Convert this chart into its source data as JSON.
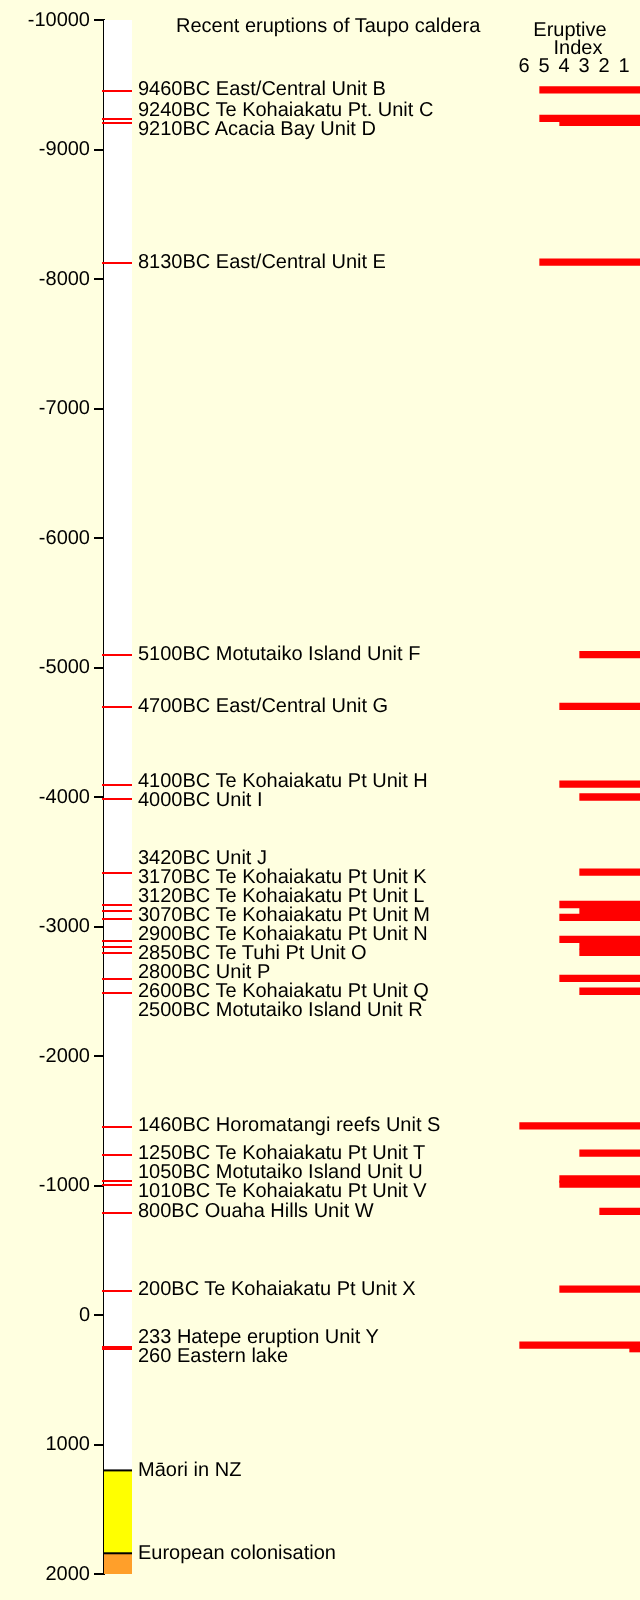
{
  "chart_data": {
    "type": "bar",
    "orientation": "horizontal",
    "title": "Recent eruptions of Taupo caldera",
    "xlabel": "Eruptive Index",
    "x": [
      -9460,
      -9240,
      -9210,
      -8130,
      -5100,
      -4700,
      -4100,
      -4000,
      -3420,
      -3170,
      -3120,
      -3070,
      -2900,
      -2850,
      -2800,
      -2600,
      -2500,
      -1460,
      -1250,
      -1050,
      -1010,
      -800,
      -200,
      233,
      260
    ],
    "values": [
      5,
      5,
      4,
      5,
      3,
      4,
      4,
      3,
      3,
      4,
      3,
      4,
      4,
      3,
      3,
      4,
      3,
      6,
      3,
      4,
      4,
      2,
      4,
      6,
      0.5
    ],
    "color": "#ff0000",
    "xlim": [
      26.8,
      0
    ],
    "xticks": [
      6,
      5,
      4,
      3,
      2,
      1
    ],
    "ylim": [
      2000,
      -10000
    ],
    "yticks": [
      -10000,
      -9000,
      -8000,
      -7000,
      -6000,
      -5000,
      -4000,
      -3000,
      -2000,
      -1000,
      0,
      1000,
      2000
    ],
    "grid": false,
    "ref_lines": [
      {
        "axis": "y",
        "value": -9460,
        "label": "9460BC East/Central Unit B",
        "color": "#ff0000"
      },
      {
        "axis": "y",
        "value": -9240,
        "label": "9240BC Te Kohaiakatu Pt. Unit C",
        "color": "#ff0000"
      },
      {
        "axis": "y",
        "value": -9210,
        "label": "9210BC Acacia Bay Unit D",
        "color": "#ff0000"
      },
      {
        "axis": "y",
        "value": -8130,
        "label": "8130BC East/Central Unit E",
        "color": "#ff0000"
      },
      {
        "axis": "y",
        "value": -5100,
        "label": "5100BC Motutaiko Island Unit F",
        "color": "#ff0000"
      },
      {
        "axis": "y",
        "value": -4700,
        "label": "4700BC East/Central Unit G",
        "color": "#ff0000"
      },
      {
        "axis": "y",
        "value": -4100,
        "label": "4100BC Te Kohaiakatu Pt Unit H",
        "color": "#ff0000"
      },
      {
        "axis": "y",
        "value": -4000,
        "label": "4000BC Unit I",
        "color": "#ff0000"
      },
      {
        "axis": "y",
        "value": -3420,
        "label": "3420BC Unit J",
        "color": "#ff0000"
      },
      {
        "axis": "y",
        "value": -3170,
        "label": "3170BC Te Kohaiakatu Pt Unit K",
        "color": "#ff0000"
      },
      {
        "axis": "y",
        "value": -3120,
        "label": "3120BC Te Kohaiakatu Pt Unit L",
        "color": "#ff0000"
      },
      {
        "axis": "y",
        "value": -3070,
        "label": "3070BC Te Kohaiakatu Pt Unit M",
        "color": "#ff0000"
      },
      {
        "axis": "y",
        "value": -2900,
        "label": "2900BC Te Kohaiakatu Pt Unit N",
        "color": "#ff0000"
      },
      {
        "axis": "y",
        "value": -2850,
        "label": "2850BC Te Tuhi Pt Unit O",
        "color": "#ff0000"
      },
      {
        "axis": "y",
        "value": -2800,
        "label": "2800BC Unit P",
        "color": "#ff0000"
      },
      {
        "axis": "y",
        "value": -2600,
        "label": "2600BC Te Kohaiakatu Pt Unit Q",
        "color": "#ff0000"
      },
      {
        "axis": "y",
        "value": -2500,
        "label": "2500BC Motutaiko Island Unit R",
        "color": "#ff0000"
      },
      {
        "axis": "y",
        "value": -1460,
        "label": "1460BC Horomatangi reefs Unit S",
        "color": "#ff0000"
      },
      {
        "axis": "y",
        "value": -1250,
        "label": "1250BC Te Kohaiakatu Pt Unit T",
        "color": "#ff0000"
      },
      {
        "axis": "y",
        "value": -1050,
        "label": "1050BC Motutaiko Island Unit U",
        "color": "#ff0000"
      },
      {
        "axis": "y",
        "value": -1010,
        "label": "1010BC Te Kohaiakatu Pt Unit V",
        "color": "#ff0000"
      },
      {
        "axis": "y",
        "value": -800,
        "label": "800BC Ouaha Hills Unit W",
        "color": "#ff0000"
      },
      {
        "axis": "y",
        "value": -200,
        "label": "200BC Te Kohaiakatu Pt Unit X",
        "color": "#ff0000"
      },
      {
        "axis": "y",
        "value": 233,
        "label": "233 Hatepe eruption Unit Y",
        "color": "#ff0000"
      },
      {
        "axis": "y",
        "value": 260,
        "label": "260 Eastern lake",
        "color": "#ff0000"
      }
    ],
    "bands": [
      {
        "axis": "y",
        "from": -10000,
        "to": 1200,
        "color": "#ffffff"
      },
      {
        "axis": "y",
        "from": 1200,
        "to": 1840,
        "label": "Māori in NZ",
        "color": "#ffff00"
      },
      {
        "axis": "y",
        "from": 1840,
        "to": 2000,
        "label": "European colonisation",
        "color": "#ff9f2a"
      }
    ]
  }
}
